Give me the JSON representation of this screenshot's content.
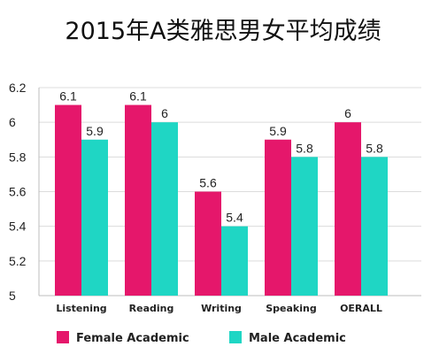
{
  "chart_data": {
    "type": "bar",
    "title": "2015年A类雅思男女平均成绩",
    "categories": [
      "Listening",
      "Reading",
      "Writing",
      "Speaking",
      "OERALL"
    ],
    "series": [
      {
        "name": "Female Academic",
        "values": [
          6.1,
          6.1,
          5.6,
          5.9,
          6
        ],
        "color": "#e5176b"
      },
      {
        "name": "Male Academic",
        "values": [
          5.9,
          6,
          5.4,
          5.8,
          5.8
        ],
        "color": "#1fd6c4"
      }
    ],
    "ylim": [
      5,
      6.2
    ],
    "yticks": [
      "5",
      "5.2",
      "5.4",
      "5.6",
      "5.8",
      "6",
      "6.2"
    ],
    "grid": true,
    "legend": "bottom"
  }
}
